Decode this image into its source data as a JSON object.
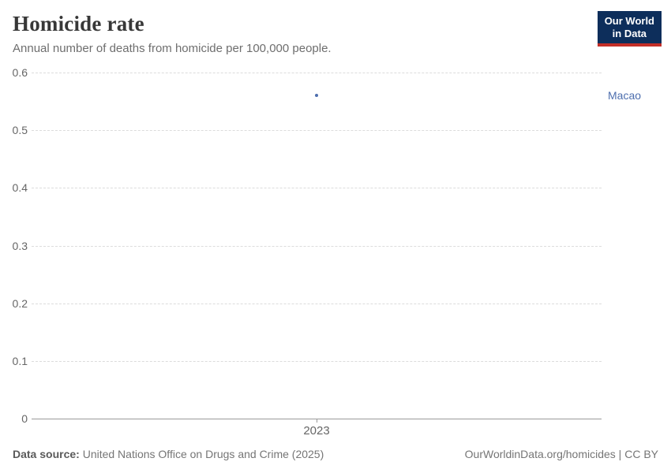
{
  "header": {
    "title": "Homicide rate",
    "subtitle": "Annual number of deaths from homicide per 100,000 people.",
    "logo": {
      "line1": "Our World",
      "line2": "in Data",
      "bg_color": "#0d2e5b",
      "bar_color": "#c32e27"
    }
  },
  "chart_data": {
    "type": "scatter",
    "title": "Homicide rate",
    "subtitle": "Annual number of deaths from homicide per 100,000 people.",
    "series": [
      {
        "name": "Macao",
        "color": "#4d6eae",
        "points": [
          {
            "x": 2023,
            "y": 0.56
          }
        ]
      }
    ],
    "xticks": [
      2023
    ],
    "yticks": [
      0,
      0.1,
      0.2,
      0.3,
      0.4,
      0.5,
      0.6
    ],
    "ylim": [
      0,
      0.6
    ],
    "grid": "horizontal-dashed",
    "legend_position": "right-of-point",
    "entity_label": "Macao",
    "colors": {
      "gridline": "#dcdcdc",
      "axis_line": "#9a9a9a",
      "tick_text": "#666666",
      "series_blue": "#4d6eae"
    }
  },
  "footer": {
    "source_label": "Data source:",
    "source_text": " United Nations Office on Drugs and Crime (2025)",
    "rights": "OurWorldinData.org/homicides | CC BY"
  }
}
